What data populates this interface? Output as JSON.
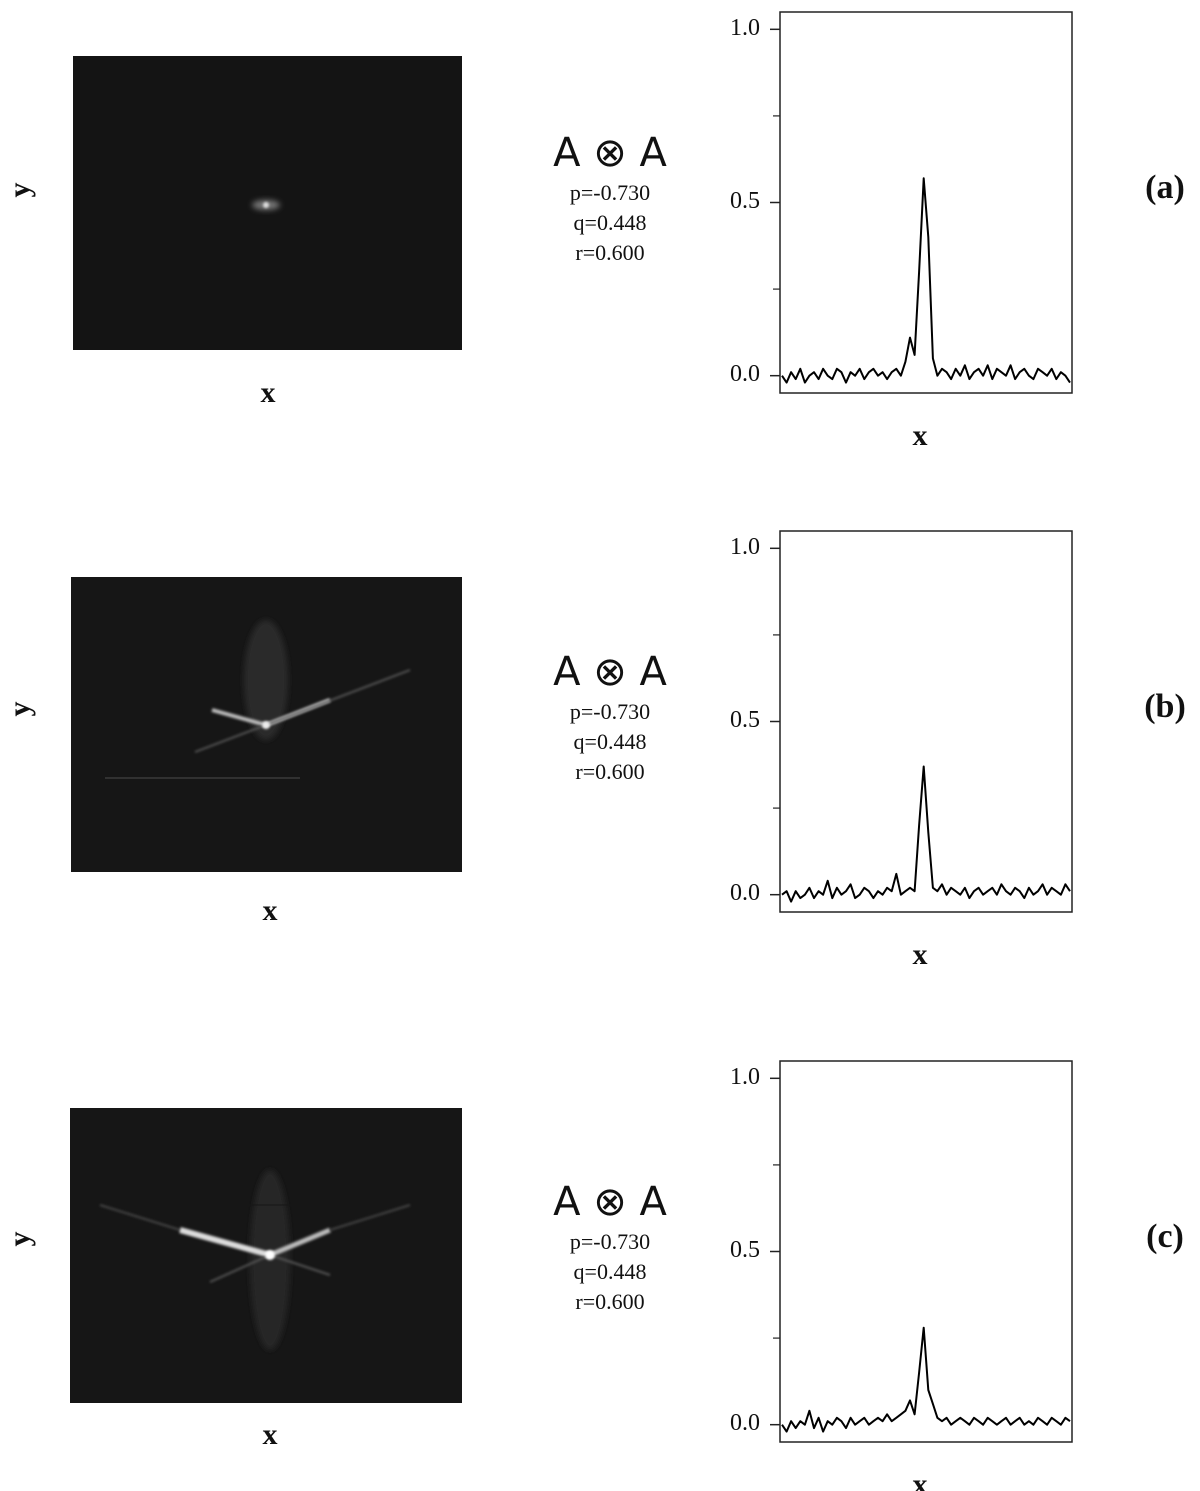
{
  "panels": [
    {
      "label": "(a)",
      "image_xlabel": "x",
      "image_ylabel": "y",
      "operator": "A ⊗ A",
      "p": "p=-0.730",
      "q": "q=0.448",
      "r": "r=0.600"
    },
    {
      "label": "(b)",
      "image_xlabel": "x",
      "image_ylabel": "y",
      "operator": "A ⊗ A",
      "p": "p=-0.730",
      "q": "q=0.448",
      "r": "r=0.600"
    },
    {
      "label": "(c)",
      "image_xlabel": "x",
      "image_ylabel": "y",
      "operator": "A ⊗ A",
      "p": "p=-0.730",
      "q": "q=0.448",
      "r": "r=0.600"
    }
  ],
  "chart_data": [
    {
      "type": "line",
      "xlabel": "x",
      "color": "#000000",
      "ylim": [
        -0.05,
        1.05
      ],
      "yticks": [
        {
          "value": 0,
          "label": "0.0"
        },
        0.5,
        {
          "value": 1,
          "label": "1.0"
        }
      ],
      "yminorticks": [
        0.25,
        0.75
      ],
      "values": [
        0.0,
        -0.02,
        0.01,
        -0.01,
        0.02,
        -0.02,
        0.0,
        0.01,
        -0.01,
        0.02,
        0.0,
        -0.01,
        0.02,
        0.01,
        -0.02,
        0.01,
        0.0,
        0.02,
        -0.01,
        0.01,
        0.02,
        0.0,
        0.01,
        -0.01,
        0.01,
        0.02,
        0.0,
        0.04,
        0.11,
        0.06,
        0.3,
        0.57,
        0.4,
        0.05,
        0.0,
        0.02,
        0.01,
        -0.01,
        0.02,
        0.0,
        0.03,
        -0.01,
        0.01,
        0.02,
        0.0,
        0.03,
        -0.01,
        0.02,
        0.01,
        0.0,
        0.03,
        -0.01,
        0.01,
        0.02,
        0.0,
        -0.01,
        0.02,
        0.01,
        0.0,
        0.02,
        -0.01,
        0.01,
        0.0,
        -0.02
      ]
    },
    {
      "type": "line",
      "xlabel": "x",
      "color": "#000000",
      "ylim": [
        -0.05,
        1.05
      ],
      "yticks": [
        {
          "value": 0,
          "label": "0.0"
        },
        0.5,
        {
          "value": 1,
          "label": "1.0"
        }
      ],
      "yminorticks": [
        0.25,
        0.75
      ],
      "values": [
        0.0,
        0.01,
        -0.02,
        0.01,
        -0.01,
        0.0,
        0.02,
        -0.01,
        0.01,
        0.0,
        0.04,
        -0.01,
        0.02,
        0.0,
        0.01,
        0.03,
        -0.01,
        0.0,
        0.02,
        0.01,
        -0.01,
        0.01,
        0.0,
        0.02,
        0.01,
        0.06,
        0.0,
        0.01,
        0.02,
        0.01,
        0.2,
        0.37,
        0.18,
        0.02,
        0.01,
        0.03,
        0.0,
        0.02,
        0.01,
        0.0,
        0.02,
        -0.01,
        0.01,
        0.02,
        0.0,
        0.01,
        0.02,
        0.0,
        0.03,
        0.01,
        0.0,
        0.02,
        0.01,
        -0.01,
        0.02,
        0.0,
        0.01,
        0.03,
        0.0,
        0.02,
        0.01,
        0.0,
        0.03,
        0.01
      ]
    },
    {
      "type": "line",
      "xlabel": "x",
      "color": "#000000",
      "ylim": [
        -0.05,
        1.05
      ],
      "yticks": [
        {
          "value": 0,
          "label": "0.0"
        },
        0.5,
        {
          "value": 1,
          "label": "1.0"
        }
      ],
      "yminorticks": [
        0.25,
        0.75
      ],
      "values": [
        0.0,
        -0.02,
        0.01,
        -0.01,
        0.01,
        0.0,
        0.04,
        -0.01,
        0.02,
        -0.02,
        0.01,
        0.0,
        0.02,
        0.01,
        -0.01,
        0.02,
        0.0,
        0.01,
        0.02,
        0.0,
        0.01,
        0.02,
        0.01,
        0.03,
        0.01,
        0.02,
        0.03,
        0.04,
        0.07,
        0.03,
        0.15,
        0.28,
        0.1,
        0.06,
        0.02,
        0.01,
        0.02,
        0.0,
        0.01,
        0.02,
        0.01,
        0.0,
        0.02,
        0.01,
        0.0,
        0.02,
        0.01,
        0.0,
        0.01,
        0.02,
        0.0,
        0.01,
        0.02,
        0.0,
        0.01,
        0.0,
        0.02,
        0.01,
        0.0,
        0.02,
        0.01,
        0.0,
        0.02,
        0.01
      ]
    }
  ]
}
